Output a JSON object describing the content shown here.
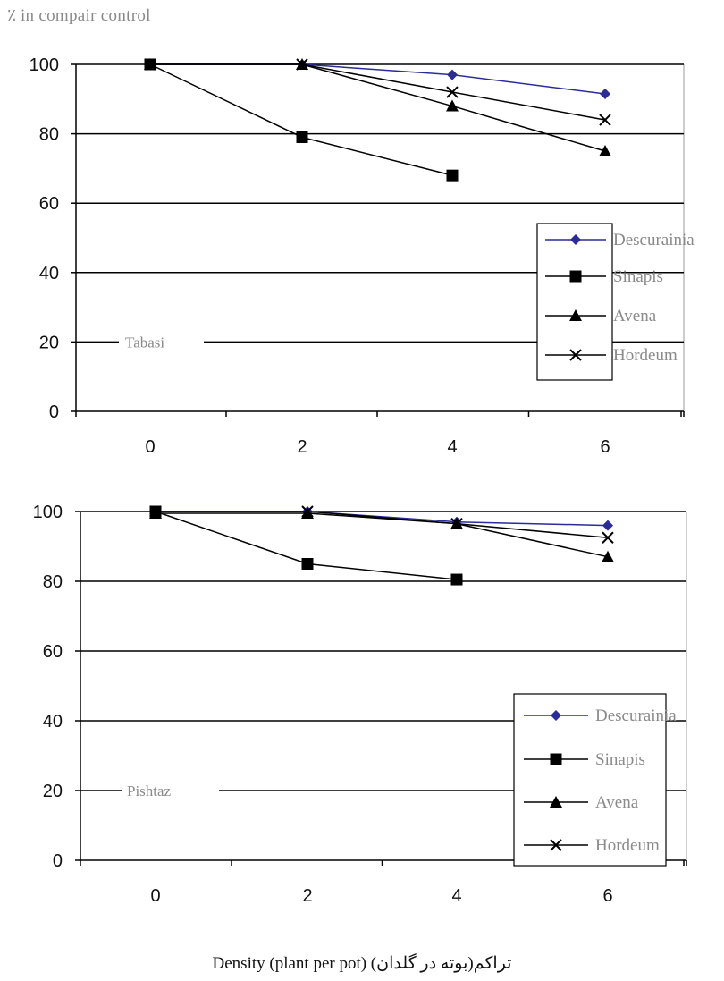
{
  "page": {
    "y_title": "٪ in compair control",
    "x_title": "Density (plant per pot) (تراکم(بوته در گلدان"
  },
  "colors": {
    "Descurainia": "#2b2b9a",
    "Sinapis": "#000000",
    "Avena": "#000000",
    "Hordeum": "#000000"
  },
  "chart_data": [
    {
      "type": "line",
      "panel_label": "Tabasi",
      "x": [
        0,
        2,
        4,
        6
      ],
      "x_tick_labels": [
        "0",
        "2",
        "4",
        "6"
      ],
      "y_tick_labels": [
        "0",
        "20",
        "40",
        "60",
        "80",
        "100"
      ],
      "ylim": [
        0,
        100
      ],
      "grid": true,
      "legend_position": "right",
      "series": [
        {
          "name": "Descurainia",
          "marker": "diamond",
          "values": [
            100,
            100,
            97,
            91.5
          ]
        },
        {
          "name": "Sinapis",
          "marker": "square",
          "values": [
            100,
            79,
            68,
            null
          ]
        },
        {
          "name": "Avena",
          "marker": "triangle",
          "values": [
            100,
            100,
            88,
            75
          ]
        },
        {
          "name": "Hordeum",
          "marker": "x",
          "values": [
            100,
            100,
            92,
            84
          ]
        }
      ]
    },
    {
      "type": "line",
      "panel_label": "Pishtaz",
      "x": [
        0,
        2,
        4,
        6
      ],
      "x_tick_labels": [
        "0",
        "2",
        "4",
        "6"
      ],
      "y_tick_labels": [
        "0",
        "20",
        "40",
        "60",
        "80",
        "100"
      ],
      "ylim": [
        0,
        100
      ],
      "grid": true,
      "legend_position": "right",
      "series": [
        {
          "name": "Descurainia",
          "marker": "diamond",
          "values": [
            100,
            100,
            97,
            96
          ]
        },
        {
          "name": "Sinapis",
          "marker": "square",
          "values": [
            100,
            85,
            80.5,
            null
          ]
        },
        {
          "name": "Avena",
          "marker": "triangle",
          "values": [
            99.5,
            99.5,
            96.5,
            87
          ]
        },
        {
          "name": "Hordeum",
          "marker": "x",
          "values": [
            100,
            100,
            96.5,
            92.5
          ]
        }
      ]
    }
  ]
}
